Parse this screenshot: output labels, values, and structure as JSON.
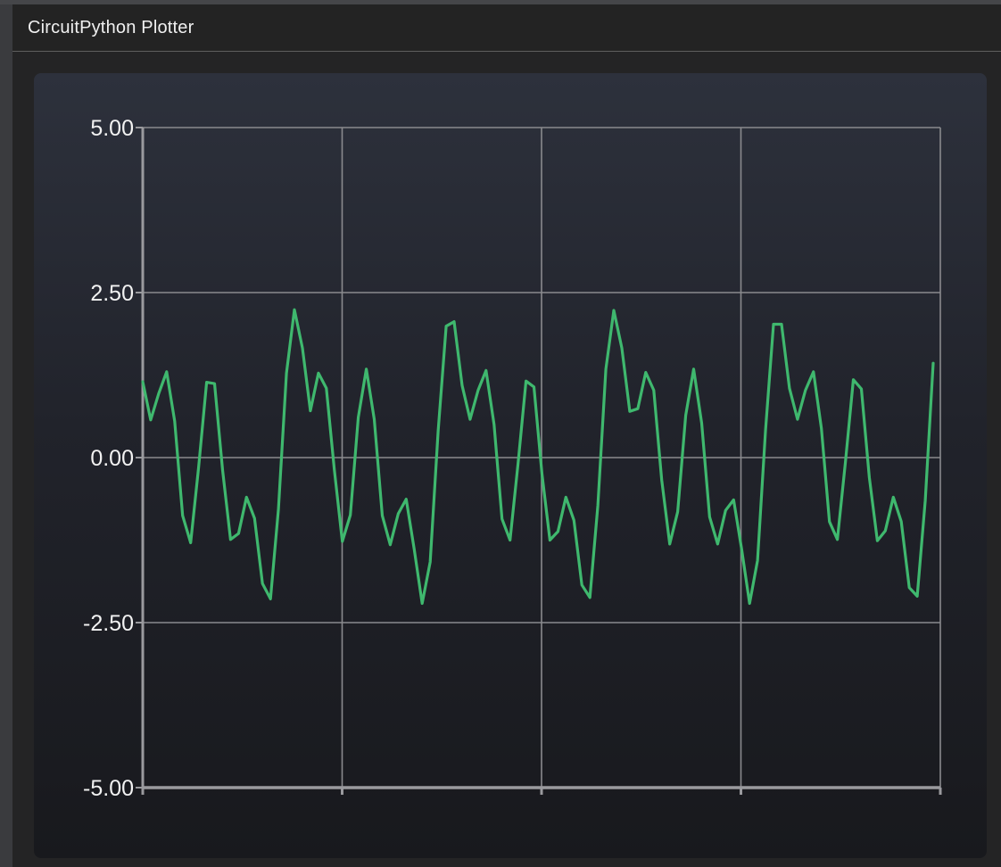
{
  "window": {
    "title": "CircuitPython Plotter"
  },
  "colors": {
    "series": "#3fb86e",
    "grid": "#8a8a8e",
    "axis": "#9a9a9e",
    "text": "#f2f2f2"
  },
  "chart_data": {
    "type": "line",
    "title": "",
    "xlabel": "",
    "ylabel": "",
    "ylim": [
      -5,
      5
    ],
    "yticks": [
      5,
      2.5,
      0,
      -2.5,
      -5
    ],
    "ytick_labels": [
      "5.00",
      "2.50",
      "0.00",
      "-2.50",
      "-5.00"
    ],
    "x_divisions": 4,
    "grid": true,
    "series": [
      {
        "values": [
          1.15,
          0.57,
          0.97,
          1.3,
          0.55,
          -0.88,
          -1.29,
          -0.15,
          1.14,
          1.12,
          -0.19,
          -1.24,
          -1.15,
          -0.6,
          -0.92,
          -1.91,
          -2.14,
          -0.78,
          1.28,
          2.24,
          1.66,
          0.71,
          1.28,
          1.05,
          -0.19,
          -1.27,
          -0.87,
          0.61,
          1.34,
          0.58,
          -0.88,
          -1.32,
          -0.85,
          -0.63,
          -1.39,
          -2.21,
          -1.58,
          0.4,
          1.99,
          2.06,
          1.09,
          0.58,
          1.02,
          1.32,
          0.5,
          -0.93,
          -1.25,
          -0.1,
          1.16,
          1.07,
          -0.25,
          -1.25,
          -1.12,
          -0.6,
          -0.95,
          -1.93,
          -2.12,
          -0.73,
          1.34,
          2.23,
          1.66,
          0.7,
          0.74,
          1.29,
          1.02,
          -0.34,
          -1.31,
          -0.82,
          0.64,
          1.34,
          0.52,
          -0.9,
          -1.31,
          -0.8,
          -0.64,
          -1.38,
          -2.21,
          -1.56,
          0.42,
          2.02,
          2.02,
          1.05,
          0.58,
          1.02,
          1.3,
          0.44,
          -0.97,
          -1.24,
          -0.07,
          1.18,
          1.04,
          -0.3,
          -1.26,
          -1.11,
          -0.6,
          -0.97,
          -1.97,
          -2.1,
          -0.65,
          1.43
        ]
      }
    ]
  }
}
